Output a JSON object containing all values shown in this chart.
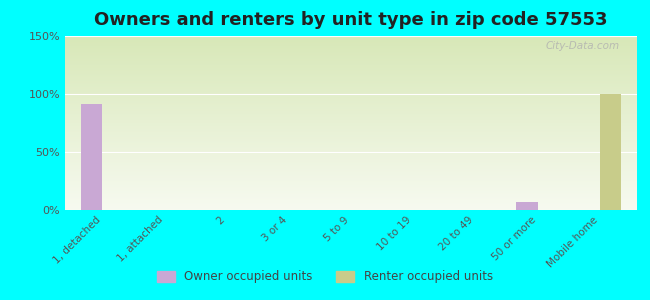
{
  "title": "Owners and renters by unit type in zip code 57553",
  "categories": [
    "1, detached",
    "1, attached",
    "2",
    "3 or 4",
    "5 to 9",
    "10 to 19",
    "20 to 49",
    "50 or more",
    "Mobile home"
  ],
  "owner_values": [
    91,
    0,
    0,
    0,
    0,
    0,
    0,
    7,
    0
  ],
  "renter_values": [
    0,
    0,
    0,
    0,
    0,
    0,
    0,
    0,
    100
  ],
  "owner_color": "#c9a8d4",
  "renter_color": "#c8cc8a",
  "background_color": "#00ffff",
  "ylim": [
    0,
    150
  ],
  "yticks": [
    0,
    50,
    100,
    150
  ],
  "ytick_labels": [
    "0%",
    "50%",
    "100%",
    "150%"
  ],
  "bar_width": 0.35,
  "title_fontsize": 13,
  "legend_owner": "Owner occupied units",
  "legend_renter": "Renter occupied units",
  "watermark": "City-Data.com",
  "grad_top": "#f7faf0",
  "grad_bottom": "#d8e8b8"
}
